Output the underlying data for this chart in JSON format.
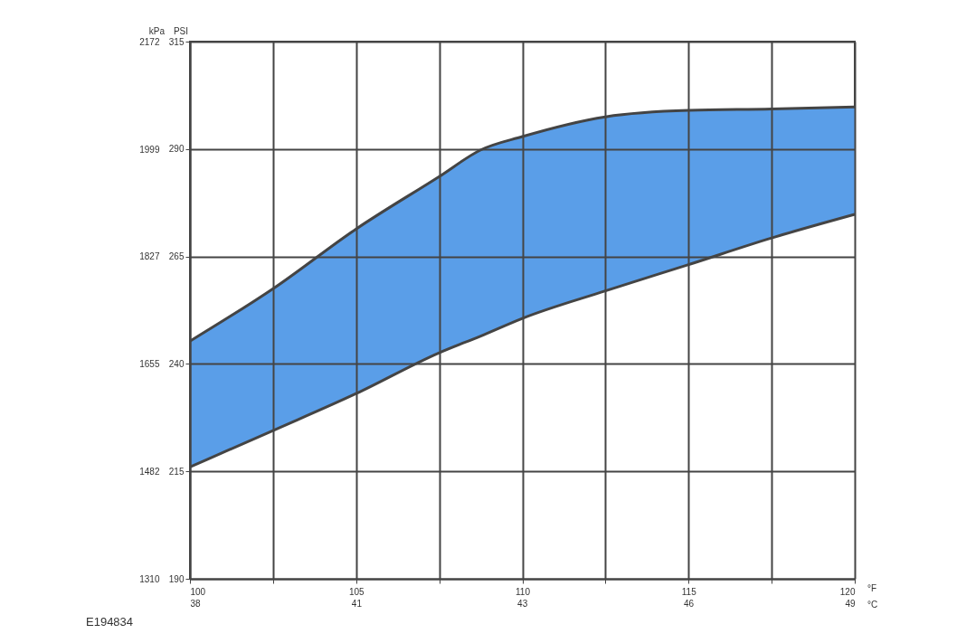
{
  "chart_data": {
    "type": "area",
    "xlabel": "°F",
    "x2label": "°C",
    "ylabel": "PSI",
    "y2label": "kPa",
    "x": [
      100,
      102.5,
      105,
      107.5,
      108.75,
      110,
      112.5,
      115,
      117.5,
      120
    ],
    "series": [
      {
        "color": "#5a9ee8",
        "values": [
          245.3,
          257.5,
          271.4,
          283.6,
          289.8,
          292.9,
          297.5,
          299,
          299.3,
          299.8
        ]
      },
      {
        "color": "#ffffff",
        "values": [
          216,
          224.5,
          233.1,
          242.6,
          246.5,
          250.6,
          257,
          263.1,
          269.3,
          274.8
        ]
      }
    ],
    "xlim": [
      100,
      120
    ],
    "ylim": [
      190,
      315
    ],
    "xticks": [
      100,
      {
        "value": 102.5,
        "label": null
      },
      105,
      {
        "value": 107.5,
        "label": null
      },
      110,
      {
        "value": 112.5,
        "label": null
      },
      115,
      {
        "value": 117.5,
        "label": null
      },
      120
    ],
    "x2lim": [
      37.78,
      48.89
    ],
    "x2ticks": [
      {
        "value": 37.78,
        "label": "38"
      },
      {
        "value": 40.56,
        "label": "41"
      },
      {
        "value": 43.33,
        "label": "43"
      },
      {
        "value": 46.11,
        "label": "46"
      },
      {
        "value": 48.89,
        "label": "49"
      }
    ],
    "yticks": [
      190,
      215,
      240,
      265,
      290,
      315
    ],
    "y2lim": [
      1310,
      2172
    ],
    "y2ticks": [
      1310,
      1482,
      1655,
      1827,
      1999,
      2172
    ],
    "grid": true,
    "annotations": [
      "E194834"
    ]
  }
}
